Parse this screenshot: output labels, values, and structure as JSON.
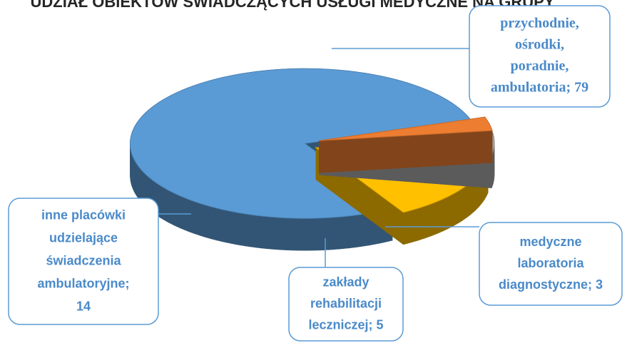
{
  "chart_data": {
    "type": "pie3d",
    "title": "UDZIAŁ OBIEKTÓW ŚWIADCZĄCYCH USŁUGI MEDYCZNE NA GRUPY",
    "data_labels": [
      [
        "przychodnie,",
        "ośrodki,",
        "poradnie,",
        "ambulatoria; 79"
      ],
      [
        "medyczne",
        "laboratoria",
        "diagnostyczne; 3"
      ],
      [
        "zakłady",
        "rehabilitacji",
        "leczniczej; 5"
      ],
      [
        "inne placówki",
        "udzielające",
        "świadczenia",
        "ambulatoryjne;",
        "14"
      ]
    ],
    "values": [
      79,
      3,
      5,
      14
    ],
    "colors": [
      "#5b9bd5",
      "#ed7d31",
      "#a5a5a5",
      "#ffc000"
    ]
  }
}
